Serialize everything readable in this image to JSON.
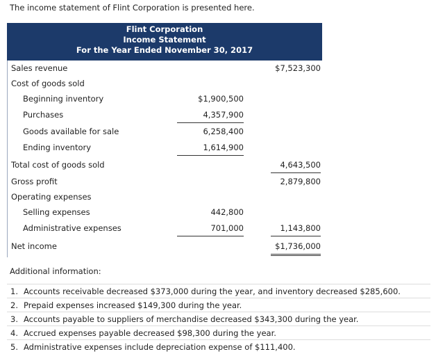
{
  "intro": "The income statement of Flint Corporation is presented here.",
  "statement": {
    "header": [
      "Flint Corporation",
      "Income Statement",
      "For the Year Ended November 30, 2017"
    ],
    "rows": [
      {
        "label": "Sales revenue",
        "total": "$7,523,300"
      },
      {
        "label": "Cost of goods sold"
      },
      {
        "label": "Beginning inventory",
        "amount": "$1,900,500"
      },
      {
        "label": "Purchases",
        "amount": "4,357,900"
      },
      {
        "label": "Goods available for sale",
        "amount": "6,258,400"
      },
      {
        "label": "Ending inventory",
        "amount": "1,614,900"
      },
      {
        "label": "Total cost of goods sold",
        "total": "4,643,500"
      },
      {
        "label": "Gross profit",
        "total": "2,879,800"
      },
      {
        "label": "Operating expenses"
      },
      {
        "label": "Selling expenses",
        "amount": "442,800"
      },
      {
        "label": "Administrative expenses",
        "amount": "701,000",
        "total": "1,143,800"
      },
      {
        "label": "Net income",
        "total": "$1,736,000"
      }
    ]
  },
  "additional": {
    "title": "Additional information:",
    "items": [
      {
        "number": "1.",
        "text": "Accounts receivable decreased $373,000 during the year, and inventory decreased $285,600."
      },
      {
        "number": "2.",
        "text": "Prepaid expenses increased $149,300 during the year."
      },
      {
        "number": "3.",
        "text": "Accounts payable to suppliers of merchandise decreased $343,300 during the year."
      },
      {
        "number": "4.",
        "text": "Accrued expenses payable decreased $98,300 during the year."
      },
      {
        "number": "5.",
        "text": "Administrative expenses include depreciation expense of $111,400."
      }
    ]
  }
}
